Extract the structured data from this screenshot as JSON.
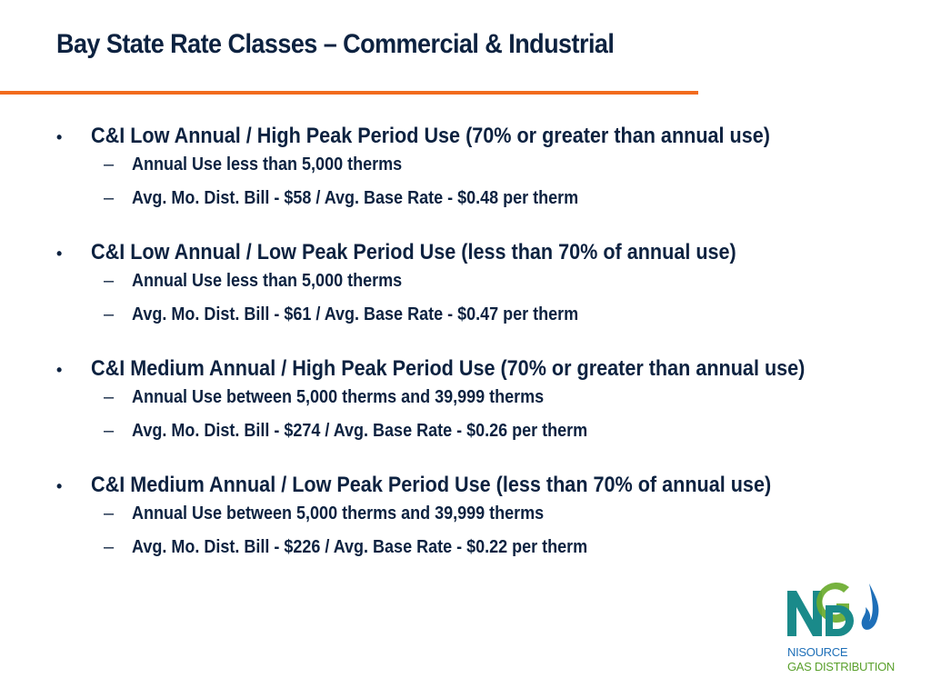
{
  "slide": {
    "title": "Bay State Rate Classes – Commercial & Industrial",
    "bullet_marker": "•",
    "sub_marker": "–",
    "accent_color": "#f26b1d",
    "sections": [
      {
        "heading": "C&I Low Annual / High Peak Period Use (70% or greater than annual use)",
        "items": [
          "Annual Use less than 5,000 therms",
          "Avg. Mo. Dist. Bill - $58 / Avg. Base Rate - $0.48 per therm"
        ]
      },
      {
        "heading": "C&I Low Annual / Low Peak Period Use (less than 70% of annual use)",
        "items": [
          "Annual Use less than 5,000 therms",
          "Avg. Mo. Dist. Bill - $61 / Avg. Base Rate - $0.47 per therm"
        ]
      },
      {
        "heading": "C&I Medium Annual / High Peak Period Use (70% or greater than annual use)",
        "items": [
          "Annual Use between 5,000 therms and 39,999 therms",
          "Avg. Mo. Dist. Bill - $274 / Avg. Base Rate - $0.26 per therm"
        ]
      },
      {
        "heading": "C&I Medium Annual / Low Peak Period Use (less than 70% of annual use)",
        "items": [
          "Annual Use between 5,000 therms and 39,999 therms",
          "Avg. Mo. Dist. Bill - $226 / Avg. Base Rate - $0.22 per therm"
        ]
      }
    ]
  },
  "logo": {
    "mark": "NGD",
    "line1": "NISOURCE",
    "line2": "GAS DISTRIBUTION",
    "colors": {
      "teal": "#1a8a8a",
      "green": "#6aab2e",
      "blue": "#1e6fb8"
    }
  }
}
